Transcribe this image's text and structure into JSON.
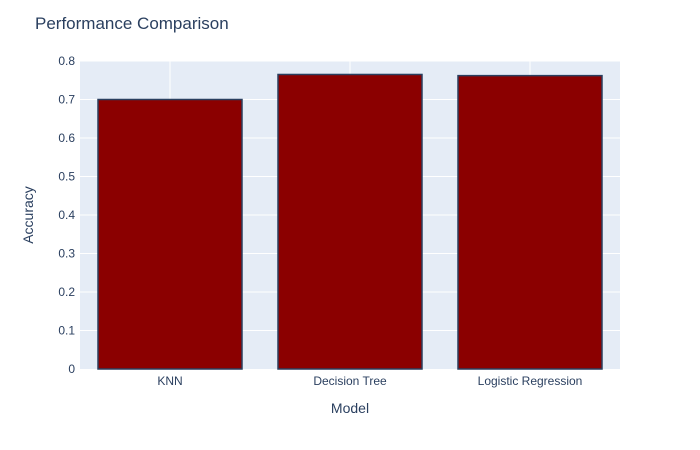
{
  "chart_data": {
    "type": "bar",
    "title": "Performance Comparison",
    "xlabel": "Model",
    "ylabel": "Accuracy",
    "categories": [
      "KNN",
      "Decision Tree",
      "Logistic Regression"
    ],
    "values": [
      0.7,
      0.765,
      0.762
    ],
    "ylim": [
      0,
      0.8
    ],
    "yticks": [
      0,
      0.1,
      0.2,
      0.3,
      0.4,
      0.5,
      0.6,
      0.7,
      0.8
    ],
    "ytick_labels": [
      "0",
      "0.1",
      "0.2",
      "0.3",
      "0.4",
      "0.5",
      "0.6",
      "0.7",
      "0.8"
    ],
    "grid": true,
    "legend": "none",
    "colors": {
      "bar_fill": "#8b0000",
      "bar_outline": "#2a3f5f",
      "plot_background": "#e5ecf6",
      "gridline": "#ffffff",
      "text": "#2a3f5f"
    }
  }
}
